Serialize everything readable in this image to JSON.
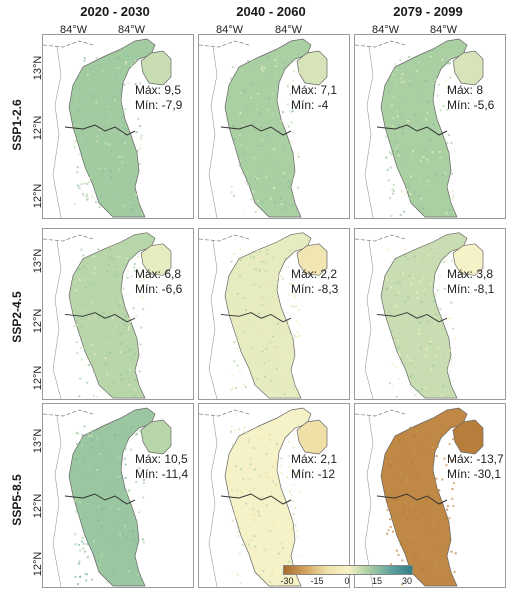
{
  "columns": [
    "2020 - 2030",
    "2040 - 2060",
    "2079 - 2099"
  ],
  "rows": [
    "SSP1-2.6",
    "SSP2-4.5",
    "SSP5-8.5"
  ],
  "lon_labels": [
    "84°W",
    "84°W"
  ],
  "lat_labels": [
    "13°N",
    "12°N",
    "12°N"
  ],
  "panels": [
    [
      {
        "max": "Máx: 9,5",
        "min": "Mín: -7,9",
        "value": 6
      },
      {
        "max": "Máx: 7,1",
        "min": "Mín: -4",
        "value": 5
      },
      {
        "max": "Máx: 8",
        "min": "Mín: -5,6",
        "value": 5
      }
    ],
    [
      {
        "max": "Máx: 6,8",
        "min": "Mín: -6,6",
        "value": 4
      },
      {
        "max": "Máx: 2,2",
        "min": "Mín: -8,3",
        "value": 1
      },
      {
        "max": "Máx: 3,8",
        "min": "Mín: -8,1",
        "value": 3
      }
    ],
    [
      {
        "max": "Máx: 10,5",
        "min": "Mín: -11,4",
        "value": 7
      },
      {
        "max": "Máx: 2,1",
        "min": "Mín: -12",
        "value": 0
      },
      {
        "max": "Máx: -13,7",
        "min": "Mín: -30,1",
        "value": -22
      }
    ]
  ],
  "legend": {
    "ticks": [
      "-30",
      "-15",
      "0",
      "15",
      "30"
    ],
    "range": [
      -30,
      30
    ]
  },
  "colors": {
    "brown": "#a86a2a",
    "tan": "#d3a35c",
    "cream": "#f6f2c8",
    "lightgreen": "#a9cfa2",
    "teal": "#5fa39e",
    "darkteal": "#2f7f86"
  }
}
